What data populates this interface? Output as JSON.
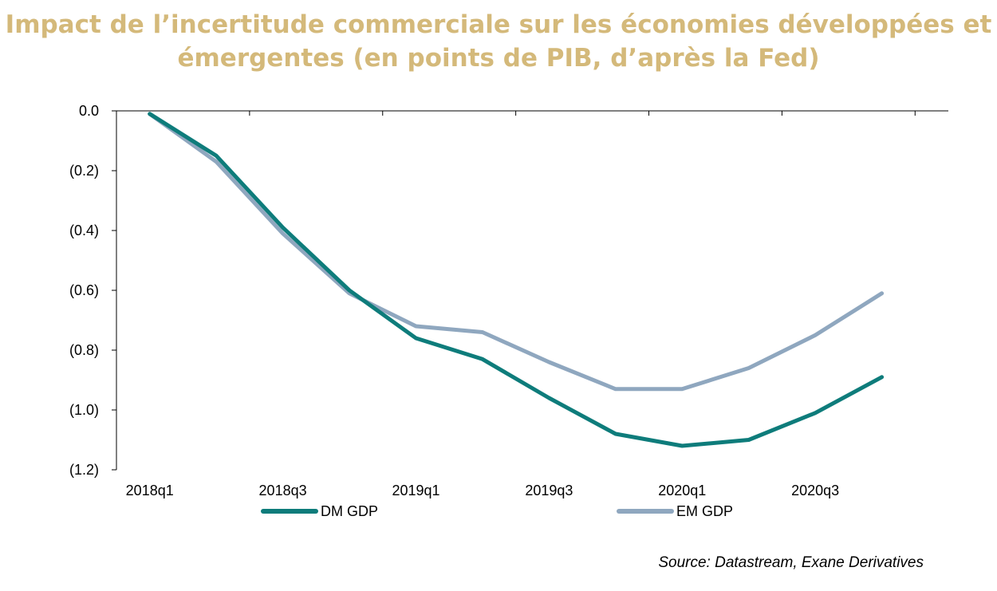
{
  "chart_data": {
    "type": "line",
    "title": "Impact de l’incertitude commerciale sur les économies développées et",
    "title_line2": "émergentes (en points de PIB, d’après la Fed)",
    "xlabel": "",
    "ylabel": "",
    "x": [
      "2018q1",
      "2018q2",
      "2018q3",
      "2018q4",
      "2019q1",
      "2019q2",
      "2019q3",
      "2019q4",
      "2020q1",
      "2020q2",
      "2020q3",
      "2020q4"
    ],
    "x_tick_labels": [
      "2018q1",
      "2018q3",
      "2019q1",
      "2019q3",
      "2020q1",
      "2020q3"
    ],
    "y_tick_labels": [
      "0.0",
      "(0.2)",
      "(0.4)",
      "(0.6)",
      "(0.8)",
      "(1.0)",
      "(1.2)"
    ],
    "y_ticks": [
      0,
      -0.2,
      -0.4,
      -0.6,
      -0.8,
      -1.0,
      -1.2
    ],
    "ylim": [
      -1.2,
      0
    ],
    "series": [
      {
        "name": "DM GDP",
        "color": "#0E7C7B",
        "values": [
          -0.01,
          -0.15,
          -0.39,
          -0.6,
          -0.76,
          -0.83,
          -0.96,
          -1.08,
          -1.12,
          -1.1,
          -1.01,
          -0.89
        ]
      },
      {
        "name": "EM GDP",
        "color": "#8FA7BF",
        "values": [
          -0.01,
          -0.17,
          -0.41,
          -0.61,
          -0.72,
          -0.74,
          -0.84,
          -0.93,
          -0.93,
          -0.86,
          -0.75,
          -0.61
        ]
      }
    ],
    "grid": false,
    "legend_position": "bottom"
  },
  "source": "Source: Datastream, Exane Derivatives"
}
